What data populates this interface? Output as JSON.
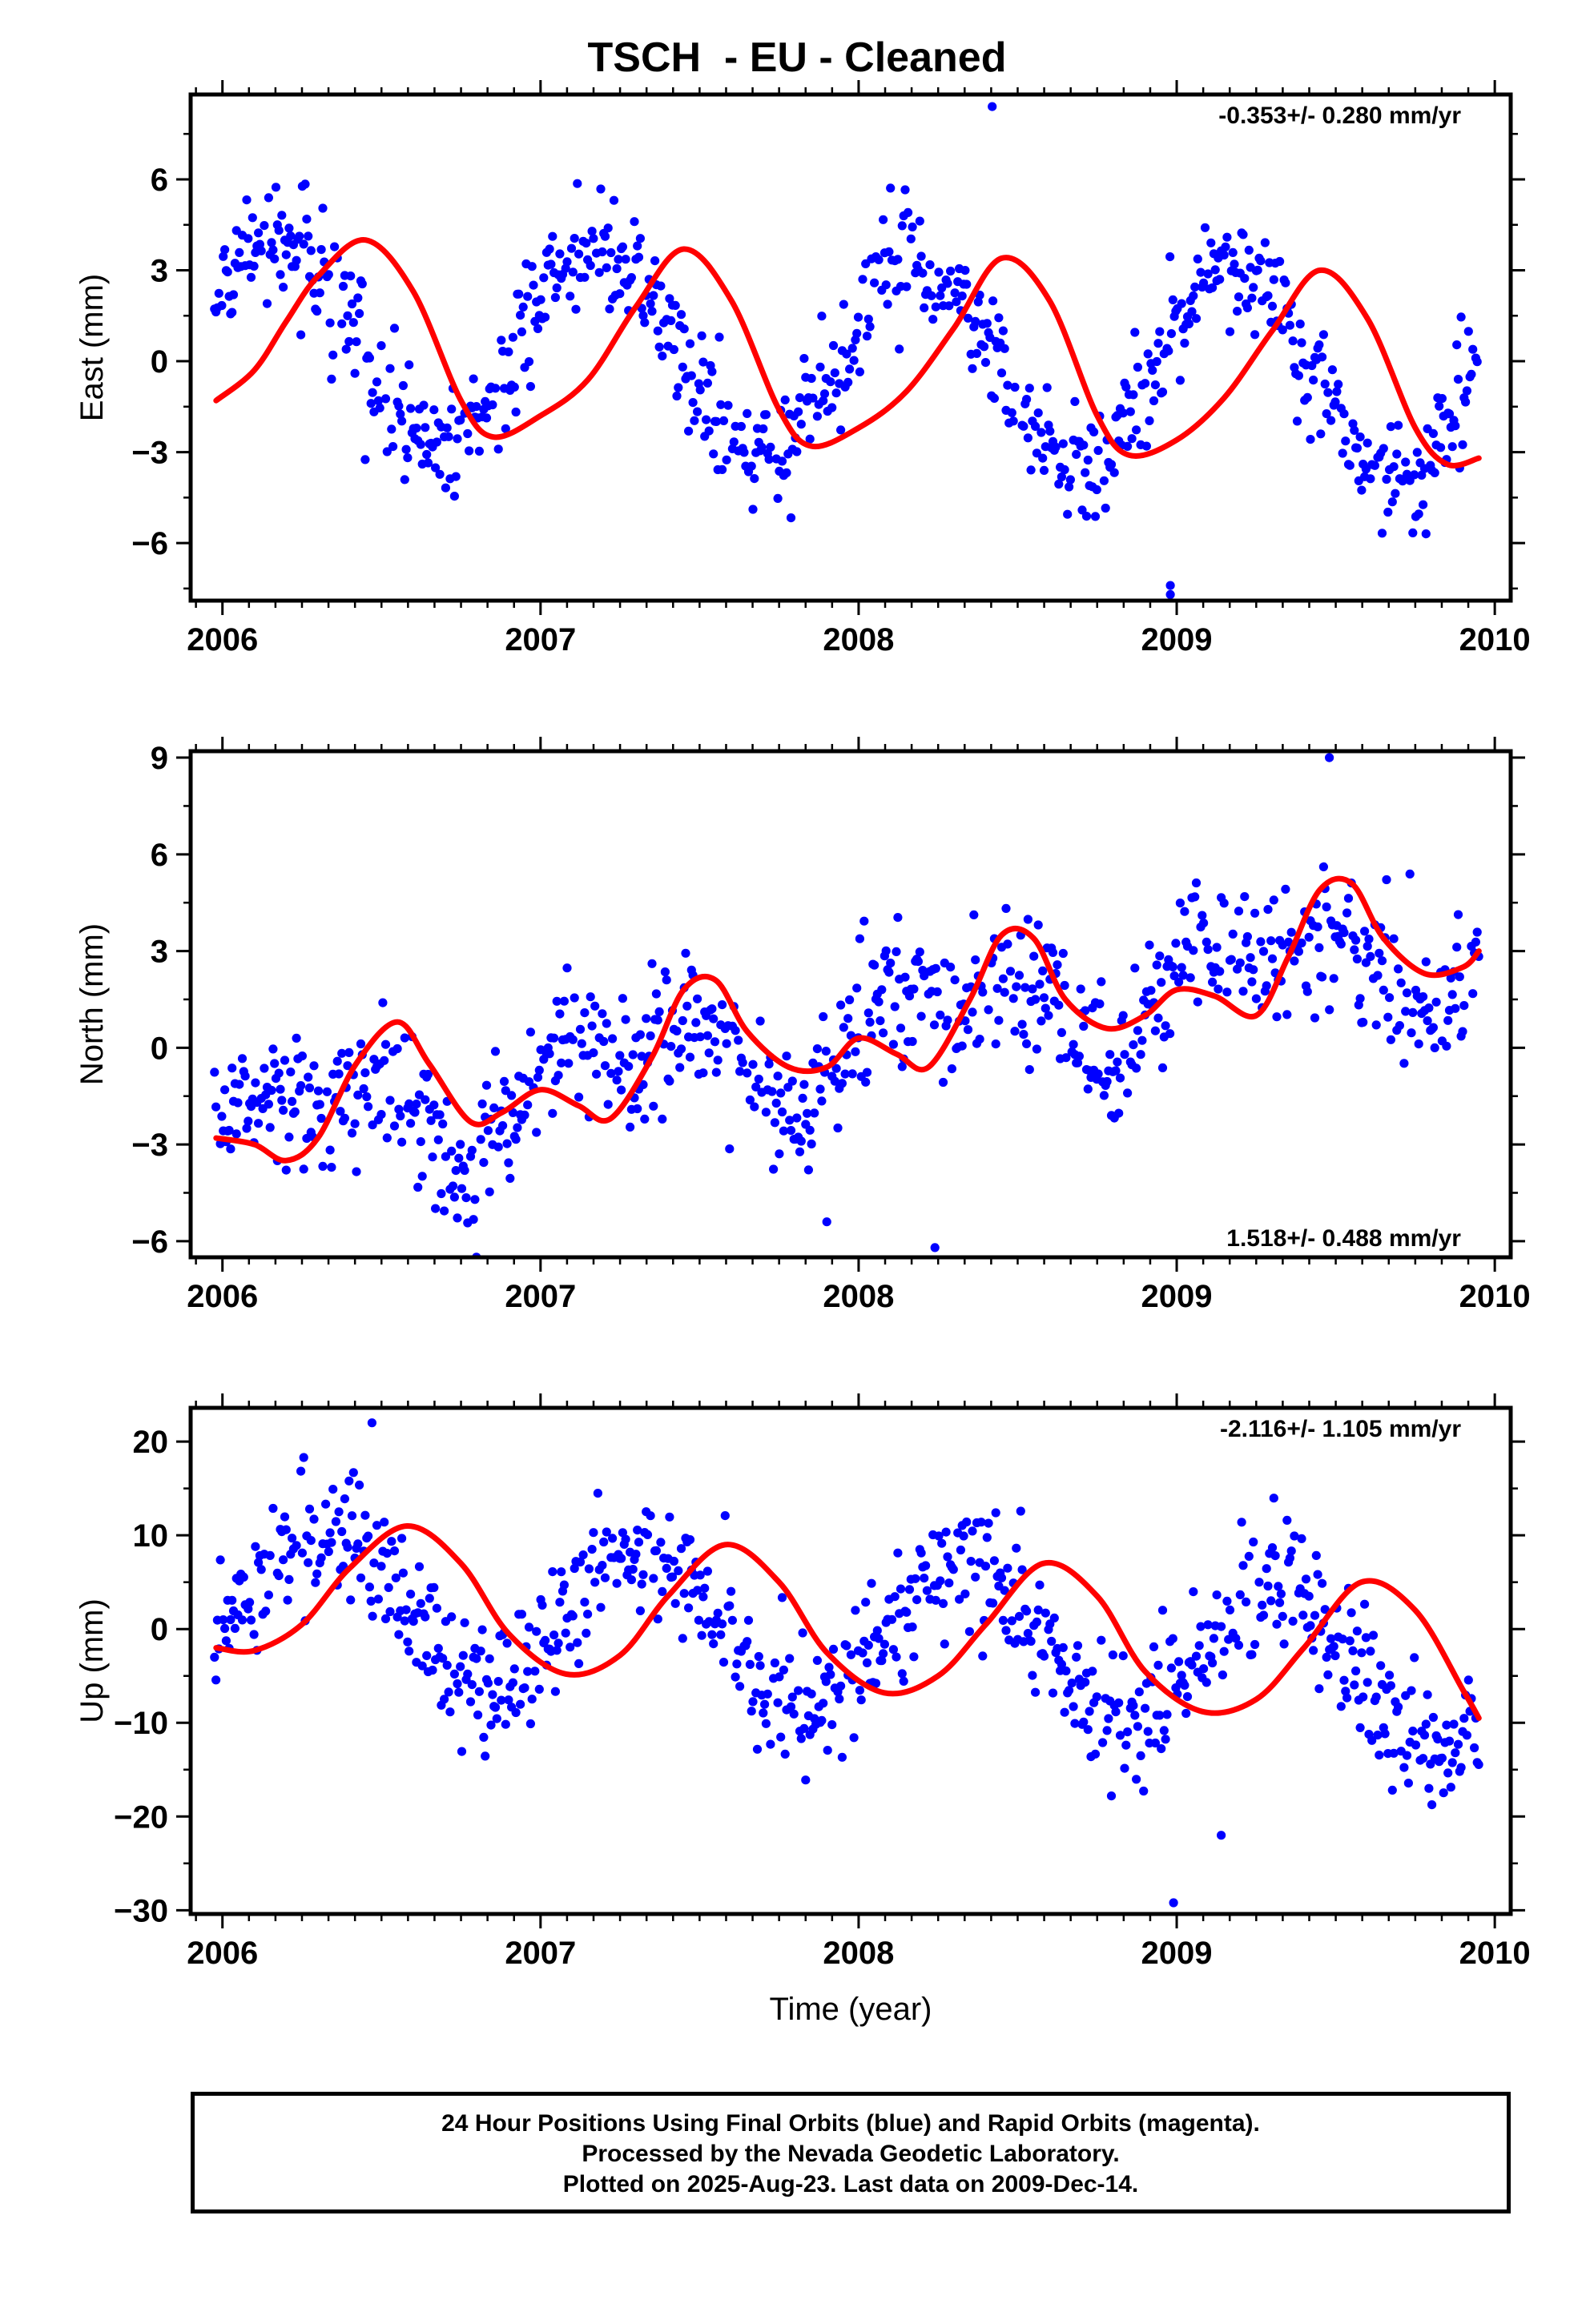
{
  "title": "TSCH  - EU - Cleaned",
  "chart_data": [
    {
      "type": "scatter",
      "ylabel": "East (mm)",
      "xlabel": "",
      "rate_label": "-0.353+/- 0.280 mm/yr",
      "rate_position": "top-right",
      "xlim": [
        2005.9,
        2010.05
      ],
      "ylim": [
        -7.9,
        8.8
      ],
      "x_ticks": [
        2006,
        2007,
        2008,
        2009,
        2010
      ],
      "y_ticks": [
        -6,
        -3,
        0,
        3,
        6
      ],
      "grid": false,
      "series": [
        {
          "name": "",
          "kind": "points",
          "color": "#0000ff",
          "seasonal": {
            "offset": 0.8,
            "trend": -0.353,
            "amp1": 3.3,
            "phase1": 0.18,
            "amp2": 0.0,
            "phase2": 0.0,
            "scatter": 1.0,
            "outliers": [
              [
                2008.42,
                8.4
              ],
              [
                2008.98,
                -7.4
              ],
              [
                2008.98,
                -7.7
              ]
            ]
          }
        },
        {
          "name": "",
          "kind": "model",
          "color": "#ff0000",
          "x": [
            2005.98,
            2006.1,
            2006.2,
            2006.3,
            2006.45,
            2006.6,
            2006.75,
            2006.85,
            2007.0,
            2007.15,
            2007.3,
            2007.45,
            2007.6,
            2007.75,
            2007.85,
            2008.0,
            2008.15,
            2008.3,
            2008.45,
            2008.6,
            2008.75,
            2008.85,
            2009.0,
            2009.15,
            2009.3,
            2009.45,
            2009.6,
            2009.75,
            2009.85,
            2009.95
          ],
          "y": [
            -1.3,
            -0.3,
            1.3,
            2.8,
            4.0,
            2.3,
            -1.3,
            -2.5,
            -1.8,
            -0.6,
            1.8,
            3.7,
            2.0,
            -1.6,
            -2.8,
            -2.2,
            -1.0,
            1.1,
            3.4,
            2.0,
            -1.8,
            -3.1,
            -2.6,
            -1.2,
            1.0,
            3.0,
            1.4,
            -2.2,
            -3.4,
            -3.2
          ]
        }
      ]
    },
    {
      "type": "scatter",
      "ylabel": "North (mm)",
      "xlabel": "",
      "rate_label": "1.518+/- 0.488 mm/yr",
      "rate_position": "bottom-right",
      "xlim": [
        2005.9,
        2010.05
      ],
      "ylim": [
        -6.5,
        9.2
      ],
      "x_ticks": [
        2006,
        2007,
        2008,
        2009,
        2010
      ],
      "y_ticks": [
        -6,
        -3,
        0,
        3,
        6,
        9
      ],
      "grid": false,
      "series": [
        {
          "name": "",
          "kind": "points",
          "color": "#0000ff",
          "seasonal": {
            "offset": -2.6,
            "trend": 1.518,
            "amp1": 1.3,
            "phase1": 0.28,
            "amp2": 0.9,
            "phase2": 0.05,
            "scatter": 1.1,
            "outliers": [
              [
                2008.24,
                -6.2
              ],
              [
                2007.9,
                -5.4
              ],
              [
                2009.48,
                9.0
              ]
            ]
          }
        },
        {
          "name": "",
          "kind": "model",
          "color": "#ff0000",
          "x": [
            2005.98,
            2006.1,
            2006.2,
            2006.3,
            2006.42,
            2006.55,
            2006.65,
            2006.78,
            2006.88,
            2007.0,
            2007.12,
            2007.22,
            2007.35,
            2007.45,
            2007.55,
            2007.65,
            2007.78,
            2007.9,
            2008.0,
            2008.12,
            2008.22,
            2008.35,
            2008.45,
            2008.55,
            2008.65,
            2008.78,
            2008.9,
            2009.0,
            2009.12,
            2009.25,
            2009.35,
            2009.45,
            2009.55,
            2009.65,
            2009.78,
            2009.9,
            2009.95
          ],
          "y": [
            -2.8,
            -3.0,
            -3.5,
            -2.8,
            -0.5,
            0.8,
            -0.5,
            -2.3,
            -2.0,
            -1.3,
            -1.8,
            -2.2,
            -0.3,
            1.8,
            2.1,
            0.5,
            -0.6,
            -0.6,
            0.3,
            -0.2,
            -0.6,
            1.5,
            3.5,
            3.4,
            1.5,
            0.6,
            1.0,
            1.8,
            1.6,
            1.0,
            2.8,
            4.9,
            5.1,
            3.4,
            2.3,
            2.5,
            3.0
          ]
        }
      ]
    },
    {
      "type": "scatter",
      "ylabel": "Up (mm)",
      "xlabel": "Time (year)",
      "rate_label": "-2.116+/- 1.105 mm/yr",
      "rate_position": "top-right",
      "xlim": [
        2005.9,
        2010.05
      ],
      "ylim": [
        -30.4,
        23.6
      ],
      "x_ticks": [
        2006,
        2007,
        2008,
        2009,
        2010
      ],
      "y_ticks": [
        -30,
        -20,
        -10,
        0,
        10,
        20
      ],
      "grid": false,
      "series": [
        {
          "name": "",
          "kind": "points",
          "color": "#0000ff",
          "seasonal": {
            "offset": 3.5,
            "trend": -2.116,
            "amp1": 8.0,
            "phase1": 0.32,
            "amp2": 0.0,
            "phase2": 0.0,
            "scatter": 3.6,
            "outliers": [
              [
                2006.47,
                22.0
              ],
              [
                2008.99,
                -29.2
              ],
              [
                2009.14,
                -22.0
              ]
            ]
          }
        },
        {
          "name": "",
          "kind": "model",
          "color": "#ff0000",
          "x": [
            2005.98,
            2006.1,
            2006.25,
            2006.4,
            2006.58,
            2006.75,
            2006.9,
            2007.08,
            2007.25,
            2007.4,
            2007.58,
            2007.75,
            2007.9,
            2008.08,
            2008.25,
            2008.4,
            2008.58,
            2008.75,
            2008.9,
            2009.08,
            2009.25,
            2009.4,
            2009.58,
            2009.75,
            2009.9,
            2009.95
          ],
          "y": [
            -2.0,
            -2.3,
            0.5,
            6.5,
            11.0,
            7.0,
            -0.5,
            -4.8,
            -2.8,
            3.5,
            9.0,
            5.0,
            -2.5,
            -6.8,
            -5.0,
            0.5,
            7.0,
            3.5,
            -4.5,
            -8.8,
            -7.5,
            -2.0,
            5.0,
            2.0,
            -6.5,
            -9.5
          ]
        }
      ]
    }
  ],
  "footer": {
    "line1": "24 Hour Positions Using Final Orbits (blue) and Rapid Orbits (magenta).",
    "line2": "Processed by the Nevada Geodetic Laboratory.",
    "line3": "Plotted on 2025-Aug-23. Last data on 2009-Dec-14."
  }
}
